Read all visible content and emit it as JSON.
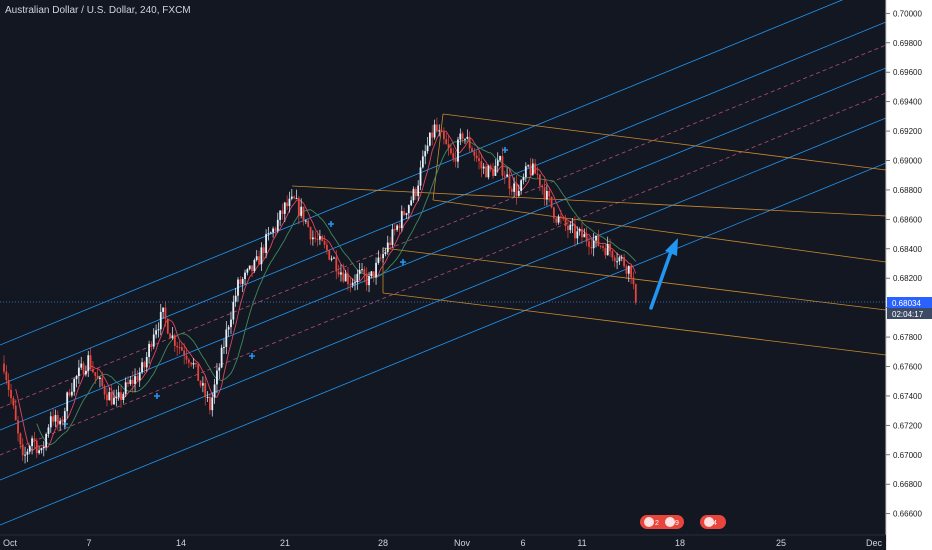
{
  "header": {
    "title": "Australian Dollar / U.S. Dollar, 240, FXCM"
  },
  "price_badge": {
    "price": "0.68034",
    "countdown": "02:04:17"
  },
  "event_badges": [
    {
      "count": "2",
      "extra": "9"
    },
    {
      "count": "4",
      "extra": ""
    }
  ],
  "colors": {
    "background": "#131722",
    "up_candle": "#e6f2fb",
    "down_candle": "#e8453c",
    "pitchfork_blue": "#2196f3",
    "pitchfork_median": "#b34d6e",
    "channel_orange": "#c78a2e",
    "ma_red": "#e0455a",
    "ma_green": "#3d8a5a",
    "arrow": "#2196f3",
    "price_axis_bg": "#ffffff",
    "price_tag_bg": "#2a62ff",
    "countdown_bg": "#3d4a66",
    "badge_red": "#e8453c"
  },
  "chart_data": {
    "type": "candlestick",
    "title": "Australian Dollar / U.S. Dollar, 240, FXCM",
    "xlabel": "",
    "ylabel": "",
    "ylim": [
      0.6655,
      0.7005
    ],
    "grid": false,
    "y_ticks": [
      "0.70000",
      "0.69800",
      "0.69600",
      "0.69400",
      "0.69200",
      "0.69000",
      "0.68800",
      "0.68600",
      "0.68400",
      "0.68200",
      "0.68000",
      "0.67800",
      "0.67600",
      "0.67400",
      "0.67200",
      "0.67000",
      "0.66800",
      "0.66600"
    ],
    "x_ticks": [
      "Oct",
      "7",
      "14",
      "21",
      "28",
      "Nov",
      "6",
      "11",
      "18",
      "25",
      "Dec"
    ],
    "current_price": 0.68034,
    "price_path": [
      [
        0,
        0.6762
      ],
      [
        4,
        0.673
      ],
      [
        8,
        0.6695
      ],
      [
        12,
        0.6712
      ],
      [
        16,
        0.67
      ],
      [
        20,
        0.6728
      ],
      [
        24,
        0.6718
      ],
      [
        28,
        0.6745
      ],
      [
        32,
        0.6755
      ],
      [
        36,
        0.6765
      ],
      [
        40,
        0.675
      ],
      [
        44,
        0.6742
      ],
      [
        48,
        0.6735
      ],
      [
        52,
        0.6745
      ],
      [
        56,
        0.6752
      ],
      [
        60,
        0.676
      ],
      [
        64,
        0.6785
      ],
      [
        68,
        0.6795
      ],
      [
        72,
        0.678
      ],
      [
        76,
        0.6772
      ],
      [
        80,
        0.6765
      ],
      [
        84,
        0.6748
      ],
      [
        88,
        0.6732
      ],
      [
        92,
        0.676
      ],
      [
        96,
        0.679
      ],
      [
        100,
        0.6815
      ],
      [
        104,
        0.6822
      ],
      [
        108,
        0.683
      ],
      [
        112,
        0.6845
      ],
      [
        116,
        0.6855
      ],
      [
        120,
        0.6868
      ],
      [
        124,
        0.6872
      ],
      [
        128,
        0.6862
      ],
      [
        132,
        0.6848
      ],
      [
        136,
        0.6842
      ],
      [
        140,
        0.6835
      ],
      [
        144,
        0.6825
      ],
      [
        148,
        0.6818
      ],
      [
        152,
        0.6822
      ],
      [
        156,
        0.6818
      ],
      [
        160,
        0.683
      ],
      [
        164,
        0.6842
      ],
      [
        168,
        0.6855
      ],
      [
        172,
        0.6868
      ],
      [
        176,
        0.688
      ],
      [
        180,
        0.6905
      ],
      [
        184,
        0.6922
      ],
      [
        188,
        0.6912
      ],
      [
        192,
        0.69
      ],
      [
        196,
        0.6918
      ],
      [
        200,
        0.6908
      ],
      [
        204,
        0.6895
      ],
      [
        208,
        0.6892
      ],
      [
        212,
        0.6898
      ],
      [
        216,
        0.6885
      ],
      [
        220,
        0.6878
      ],
      [
        224,
        0.6895
      ],
      [
        228,
        0.689
      ],
      [
        232,
        0.6875
      ],
      [
        236,
        0.6862
      ],
      [
        240,
        0.6855
      ],
      [
        244,
        0.685
      ],
      [
        248,
        0.6848
      ],
      [
        252,
        0.6845
      ],
      [
        256,
        0.6842
      ],
      [
        260,
        0.6838
      ],
      [
        264,
        0.6832
      ],
      [
        268,
        0.6825
      ],
      [
        270,
        0.6803
      ]
    ]
  }
}
